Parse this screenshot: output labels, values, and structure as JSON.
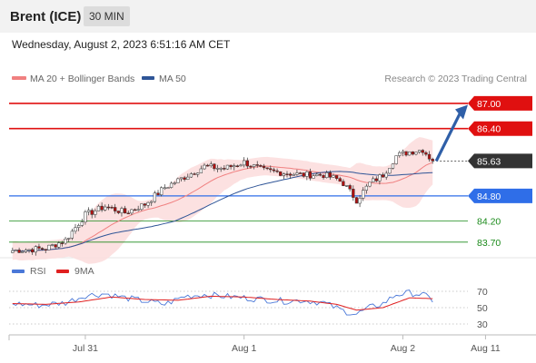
{
  "header": {
    "instrument": "Brent (ICE)",
    "timeframe": "30 MIN"
  },
  "timestamp": "Wednesday, August 2, 2023 6:51:16 AM CET",
  "legend": {
    "ma20": {
      "label": "MA 20 + Bollinger Bands",
      "color": "#f08080"
    },
    "ma50": {
      "label": "MA 50",
      "color": "#2f5597"
    },
    "credit": "Research © 2023 Trading Central"
  },
  "rsi_legend": {
    "rsi": {
      "label": "RSI",
      "color": "#4a78d8"
    },
    "ma9": {
      "label": "9MA",
      "color": "#e02020"
    }
  },
  "chart_data": {
    "type": "candlestick",
    "y_range": [
      83.2,
      87.3
    ],
    "levels": [
      {
        "label": "87.00",
        "value": 87.0,
        "kind": "resistance",
        "color": "#e01010"
      },
      {
        "label": "86.40",
        "value": 86.4,
        "kind": "resistance",
        "color": "#e01010"
      },
      {
        "label": "85.63",
        "value": 85.63,
        "kind": "last-price",
        "color": "#333333"
      },
      {
        "label": "84.80",
        "value": 84.8,
        "kind": "pivot",
        "color": "#2f6ee8"
      },
      {
        "label": "84.20",
        "value": 84.2,
        "kind": "support",
        "color": "#1a8a1a"
      },
      {
        "label": "83.70",
        "value": 83.7,
        "kind": "support",
        "color": "#1a8a1a"
      }
    ],
    "x_ticks": [
      "Jul 31",
      "Aug 1",
      "Aug 2",
      "Aug 11"
    ],
    "x_tick_index": [
      22,
      70,
      118,
      143
    ],
    "candles_count": 128,
    "price_path": [
      [
        0,
        83.5
      ],
      [
        10,
        83.55
      ],
      [
        16,
        83.75
      ],
      [
        22,
        84.35
      ],
      [
        28,
        84.55
      ],
      [
        34,
        84.4
      ],
      [
        40,
        84.6
      ],
      [
        46,
        85.0
      ],
      [
        52,
        85.25
      ],
      [
        58,
        85.5
      ],
      [
        64,
        85.45
      ],
      [
        70,
        85.6
      ],
      [
        76,
        85.4
      ],
      [
        82,
        85.35
      ],
      [
        88,
        85.3
      ],
      [
        94,
        85.3
      ],
      [
        98,
        85.2
      ],
      [
        100,
        85.1
      ],
      [
        104,
        84.7
      ],
      [
        108,
        85.1
      ],
      [
        112,
        85.3
      ],
      [
        116,
        85.75
      ],
      [
        120,
        85.85
      ],
      [
        124,
        85.9
      ],
      [
        127,
        85.63
      ]
    ],
    "projection": {
      "from_index": 127,
      "from_value": 85.63,
      "to_value": 86.9
    },
    "rsi": {
      "levels": [
        70,
        50,
        30
      ],
      "y_range": [
        20,
        80
      ],
      "rsi_path": [
        [
          0,
          55
        ],
        [
          8,
          53
        ],
        [
          16,
          56
        ],
        [
          22,
          65
        ],
        [
          28,
          67
        ],
        [
          34,
          62
        ],
        [
          40,
          58
        ],
        [
          46,
          54
        ],
        [
          52,
          64
        ],
        [
          58,
          66
        ],
        [
          64,
          64
        ],
        [
          70,
          62
        ],
        [
          76,
          60
        ],
        [
          82,
          58
        ],
        [
          88,
          59
        ],
        [
          94,
          56
        ],
        [
          100,
          46
        ],
        [
          104,
          42
        ],
        [
          108,
          50
        ],
        [
          112,
          55
        ],
        [
          116,
          66
        ],
        [
          120,
          68
        ],
        [
          124,
          66
        ],
        [
          127,
          59
        ]
      ],
      "ma9_path": [
        [
          0,
          55
        ],
        [
          10,
          54
        ],
        [
          20,
          57
        ],
        [
          30,
          63
        ],
        [
          40,
          60
        ],
        [
          50,
          59
        ],
        [
          60,
          64
        ],
        [
          70,
          63
        ],
        [
          80,
          60
        ],
        [
          90,
          58
        ],
        [
          98,
          54
        ],
        [
          104,
          47
        ],
        [
          112,
          50
        ],
        [
          120,
          62
        ],
        [
          127,
          61
        ]
      ]
    }
  }
}
